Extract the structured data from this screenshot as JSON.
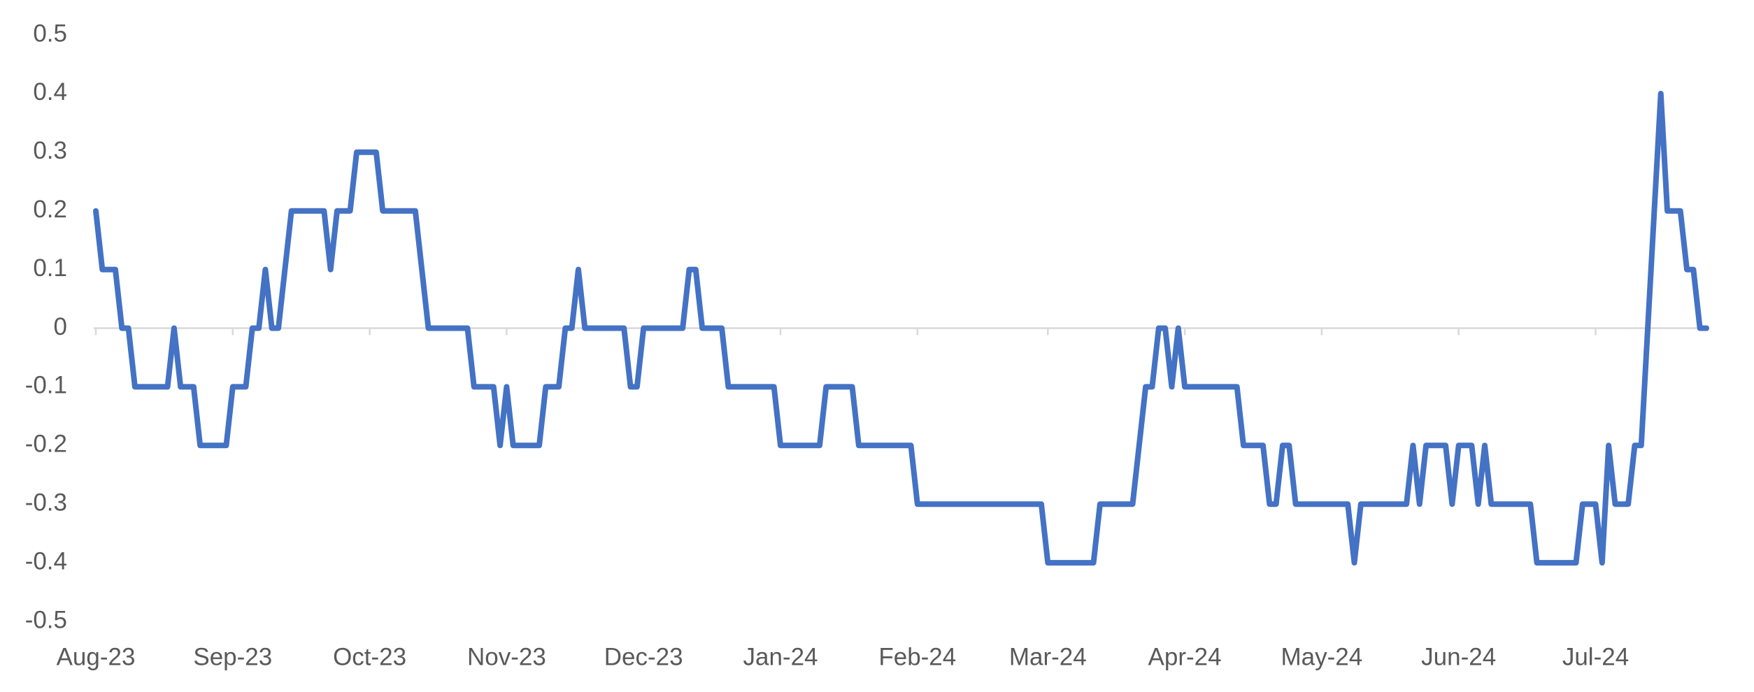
{
  "chart_data": {
    "type": "line",
    "categories": [
      "Aug-23",
      null,
      null,
      null,
      null,
      null,
      null,
      null,
      null,
      null,
      null,
      null,
      null,
      null,
      null,
      null,
      null,
      null,
      null,
      null,
      null,
      "Sep-23",
      null,
      null,
      null,
      null,
      null,
      null,
      null,
      null,
      null,
      null,
      null,
      null,
      null,
      null,
      null,
      null,
      null,
      null,
      null,
      null,
      "Oct-23",
      null,
      null,
      null,
      null,
      null,
      null,
      null,
      null,
      null,
      null,
      null,
      null,
      null,
      null,
      null,
      null,
      null,
      null,
      null,
      null,
      "Nov-23",
      null,
      null,
      null,
      null,
      null,
      null,
      null,
      null,
      null,
      null,
      null,
      null,
      null,
      null,
      null,
      null,
      null,
      null,
      null,
      null,
      "Dec-23",
      null,
      null,
      null,
      null,
      null,
      null,
      null,
      null,
      null,
      null,
      null,
      null,
      null,
      null,
      null,
      null,
      null,
      null,
      null,
      null,
      "Jan-24",
      null,
      null,
      null,
      null,
      null,
      null,
      null,
      null,
      null,
      null,
      null,
      null,
      null,
      null,
      null,
      null,
      null,
      null,
      null,
      null,
      "Feb-24",
      null,
      null,
      null,
      null,
      null,
      null,
      null,
      null,
      null,
      null,
      null,
      null,
      null,
      null,
      null,
      null,
      null,
      null,
      null,
      "Mar-24",
      null,
      null,
      null,
      null,
      null,
      null,
      null,
      null,
      null,
      null,
      null,
      null,
      null,
      null,
      null,
      null,
      null,
      null,
      null,
      null,
      "Apr-24",
      null,
      null,
      null,
      null,
      null,
      null,
      null,
      null,
      null,
      null,
      null,
      null,
      null,
      null,
      null,
      null,
      null,
      null,
      null,
      null,
      "May-24",
      null,
      null,
      null,
      null,
      null,
      null,
      null,
      null,
      null,
      null,
      null,
      null,
      null,
      null,
      null,
      null,
      null,
      null,
      null,
      null,
      "Jun-24",
      null,
      null,
      null,
      null,
      null,
      null,
      null,
      null,
      null,
      null,
      null,
      null,
      null,
      null,
      null,
      null,
      null,
      null,
      null,
      null,
      "Jul-24",
      null,
      null,
      null,
      null,
      null,
      null,
      null,
      null,
      null,
      null,
      null,
      null,
      null,
      null,
      null,
      null,
      null
    ],
    "series": [
      {
        "color": "#4472c4",
        "values": [
          0.2,
          0.1,
          0.1,
          0.1,
          0,
          0,
          -0.1,
          -0.1,
          -0.1,
          -0.1,
          -0.1,
          -0.1,
          0,
          -0.1,
          -0.1,
          -0.1,
          -0.2,
          -0.2,
          -0.2,
          -0.2,
          -0.2,
          -0.1,
          -0.1,
          -0.1,
          0,
          0,
          0.1,
          0,
          0,
          0.1,
          0.2,
          0.2,
          0.2,
          0.2,
          0.2,
          0.2,
          0.1,
          0.2,
          0.2,
          0.2,
          0.3,
          0.3,
          0.3,
          0.3,
          0.2,
          0.2,
          0.2,
          0.2,
          0.2,
          0.2,
          0.1,
          0,
          0,
          0,
          0,
          0,
          0,
          0,
          -0.1,
          -0.1,
          -0.1,
          -0.1,
          -0.2,
          -0.1,
          -0.2,
          -0.2,
          -0.2,
          -0.2,
          -0.2,
          -0.1,
          -0.1,
          -0.1,
          0,
          0,
          0.1,
          0,
          0,
          0,
          0,
          0,
          0,
          0,
          -0.1,
          -0.1,
          0,
          0,
          0,
          0,
          0,
          0,
          0,
          0.1,
          0.1,
          0,
          0,
          0,
          0,
          -0.1,
          -0.1,
          -0.1,
          -0.1,
          -0.1,
          -0.1,
          -0.1,
          -0.1,
          -0.2,
          -0.2,
          -0.2,
          -0.2,
          -0.2,
          -0.2,
          -0.2,
          -0.1,
          -0.1,
          -0.1,
          -0.1,
          -0.1,
          -0.2,
          -0.2,
          -0.2,
          -0.2,
          -0.2,
          -0.2,
          -0.2,
          -0.2,
          -0.2,
          -0.3,
          -0.3,
          -0.3,
          -0.3,
          -0.3,
          -0.3,
          -0.3,
          -0.3,
          -0.3,
          -0.3,
          -0.3,
          -0.3,
          -0.3,
          -0.3,
          -0.3,
          -0.3,
          -0.3,
          -0.3,
          -0.3,
          -0.3,
          -0.4,
          -0.4,
          -0.4,
          -0.4,
          -0.4,
          -0.4,
          -0.4,
          -0.4,
          -0.3,
          -0.3,
          -0.3,
          -0.3,
          -0.3,
          -0.3,
          -0.2,
          -0.1,
          -0.1,
          0,
          0,
          -0.1,
          0,
          -0.1,
          -0.1,
          -0.1,
          -0.1,
          -0.1,
          -0.1,
          -0.1,
          -0.1,
          -0.1,
          -0.2,
          -0.2,
          -0.2,
          -0.2,
          -0.3,
          -0.3,
          -0.2,
          -0.2,
          -0.3,
          -0.3,
          -0.3,
          -0.3,
          -0.3,
          -0.3,
          -0.3,
          -0.3,
          -0.3,
          -0.4,
          -0.3,
          -0.3,
          -0.3,
          -0.3,
          -0.3,
          -0.3,
          -0.3,
          -0.3,
          -0.2,
          -0.3,
          -0.2,
          -0.2,
          -0.2,
          -0.2,
          -0.3,
          -0.2,
          -0.2,
          -0.2,
          -0.3,
          -0.2,
          -0.3,
          -0.3,
          -0.3,
          -0.3,
          -0.3,
          -0.3,
          -0.3,
          -0.4,
          -0.4,
          -0.4,
          -0.4,
          -0.4,
          -0.4,
          -0.4,
          -0.3,
          -0.3,
          -0.3,
          -0.4,
          -0.2,
          -0.3,
          -0.3,
          -0.3,
          -0.2,
          -0.2,
          0,
          0.2,
          0.4,
          0.2,
          0.2,
          0.2,
          0.1,
          0.1,
          0,
          0
        ]
      }
    ],
    "ylim": [
      -0.5,
      0.5
    ],
    "yticks": [
      0.5,
      0.4,
      0.3,
      0.2,
      0.1,
      0,
      -0.1,
      -0.2,
      -0.3,
      -0.4,
      -0.5
    ],
    "grid": false
  }
}
